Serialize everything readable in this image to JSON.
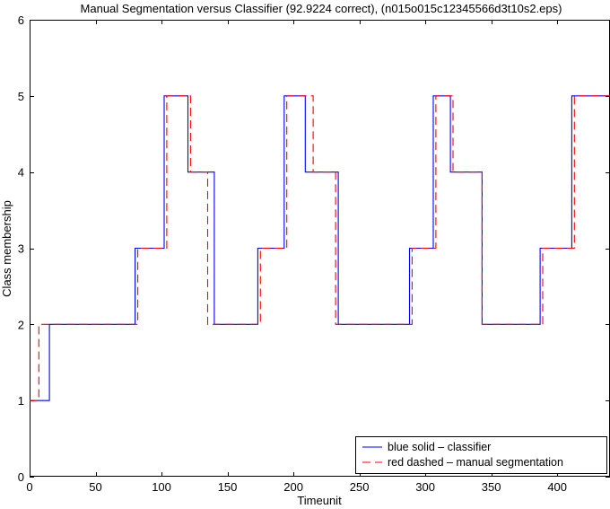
{
  "chart_data": {
    "type": "line",
    "title": "Manual Segmentation versus Classifier (92.9224 correct), (n015o015c12345566d3t10s2.eps)",
    "xlabel": "Timeunit",
    "ylabel": "Class membership",
    "xlim": [
      0,
      440
    ],
    "ylim": [
      0,
      6
    ],
    "xticks": [
      0,
      50,
      100,
      150,
      200,
      250,
      300,
      350,
      400
    ],
    "yticks": [
      0,
      1,
      2,
      3,
      4,
      5,
      6
    ],
    "grid": false,
    "legend_position": "bottom-right",
    "series": [
      {
        "name": "blue solid – classifier",
        "color": "#0000ff",
        "style": "solid",
        "x": [
          0,
          15,
          15,
          80,
          80,
          102,
          102,
          120,
          120,
          140,
          140,
          173,
          173,
          193,
          193,
          209,
          209,
          234,
          234,
          288,
          288,
          306,
          306,
          319,
          319,
          343,
          343,
          387,
          387,
          411,
          411,
          440
        ],
        "y": [
          1,
          1,
          2,
          2,
          3,
          3,
          5,
          5,
          4,
          4,
          2,
          2,
          3,
          3,
          5,
          5,
          4,
          4,
          2,
          2,
          3,
          3,
          5,
          5,
          4,
          4,
          2,
          2,
          3,
          3,
          5,
          5
        ]
      },
      {
        "name": "red dashed – manual segmentation",
        "color": "#ff0000",
        "style": "dashed",
        "x": [
          0,
          7,
          7,
          82,
          82,
          104,
          104,
          122,
          122,
          135,
          135,
          175,
          175,
          195,
          195,
          215,
          215,
          232,
          232,
          290,
          290,
          308,
          308,
          321,
          321,
          343,
          343,
          389,
          389,
          413,
          413,
          440
        ],
        "y": [
          1,
          1,
          2,
          2,
          3,
          3,
          5,
          5,
          4,
          4,
          2,
          2,
          3,
          3,
          5,
          5,
          4,
          4,
          2,
          2,
          3,
          3,
          5,
          5,
          4,
          4,
          2,
          2,
          3,
          3,
          5,
          5
        ]
      }
    ]
  }
}
